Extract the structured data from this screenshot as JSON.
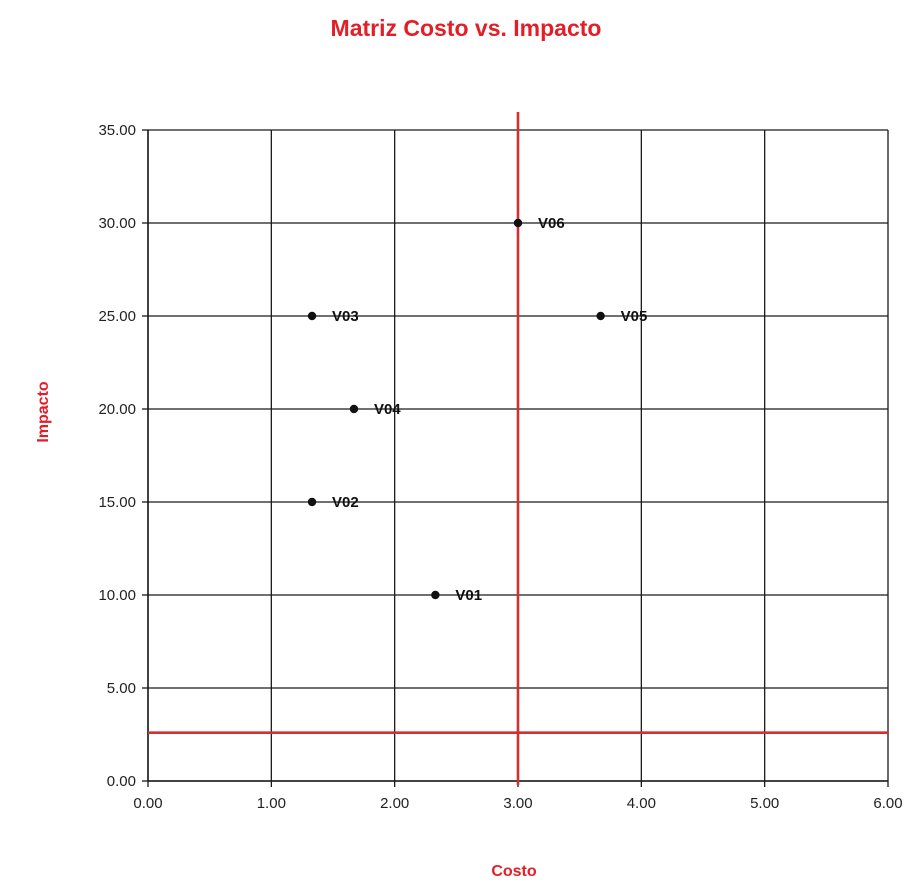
{
  "chart_data": {
    "type": "scatter",
    "title": "Matriz Costo vs. Impacto",
    "xlabel": "Costo",
    "ylabel": "Impacto",
    "xlim": [
      0,
      6
    ],
    "ylim": [
      0,
      35
    ],
    "x_ticks": [
      "0.00",
      "1.00",
      "2.00",
      "3.00",
      "4.00",
      "5.00",
      "6.00"
    ],
    "y_ticks": [
      "0.00",
      "5.00",
      "10.00",
      "15.00",
      "20.00",
      "25.00",
      "30.00",
      "35.00"
    ],
    "grid": true,
    "points": [
      {
        "label": "V01",
        "x": 2.33,
        "y": 10
      },
      {
        "label": "V02",
        "x": 1.33,
        "y": 15
      },
      {
        "label": "V03",
        "x": 1.33,
        "y": 25
      },
      {
        "label": "V04",
        "x": 1.67,
        "y": 20
      },
      {
        "label": "V05",
        "x": 3.67,
        "y": 25
      },
      {
        "label": "V06",
        "x": 3.0,
        "y": 30
      }
    ],
    "reference_lines": [
      {
        "orientation": "vertical",
        "x": 3.0
      },
      {
        "orientation": "horizontal",
        "y": 2.6
      }
    ],
    "colors": {
      "title": "#e41e26",
      "axis_title": "#e41e26",
      "reference_line": "#d32f2f",
      "grid": "#1a1a1a",
      "point": "#111111"
    }
  }
}
